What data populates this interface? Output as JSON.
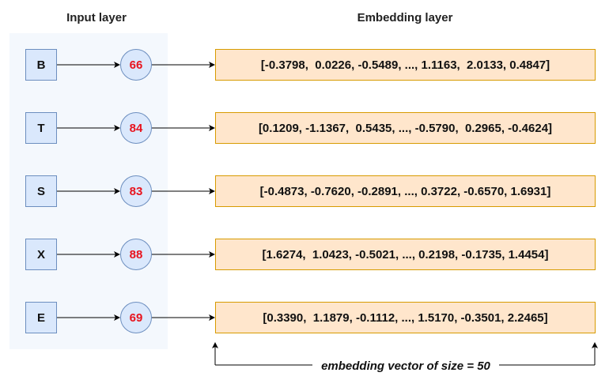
{
  "headings": {
    "input_layer": "Input layer",
    "embedding_layer": "Embedding layer"
  },
  "rows": [
    {
      "letter": "B",
      "code": "66",
      "vector": "[-0.3798,  0.0226, -0.5489, ..., 1.1163,  2.0133, 0.4847]"
    },
    {
      "letter": "T",
      "code": "84",
      "vector": "[0.1209, -1.1367,  0.5435, ..., -0.5790,  0.2965, -0.4624]"
    },
    {
      "letter": "S",
      "code": "83",
      "vector": "[-0.4873, -0.7620, -0.2891, ..., 0.3722, -0.6570, 1.6931]"
    },
    {
      "letter": "X",
      "code": "88",
      "vector": "[1.6274,  1.0423, -0.5021, ..., 0.2198, -0.1735, 1.4454]"
    },
    {
      "letter": "E",
      "code": "69",
      "vector": "[0.3390,  1.1879, -0.1112, ..., 1.5170, -0.3501, 2.2465]"
    }
  ],
  "caption": "embedding vector of size = 50",
  "colors": {
    "panel_bg": "#f4f8fd",
    "node_fill": "#dae8fc",
    "node_border": "#6c8ebf",
    "code_text": "#e8141e",
    "vector_fill": "#ffe6cc",
    "vector_border": "#d79b00"
  }
}
